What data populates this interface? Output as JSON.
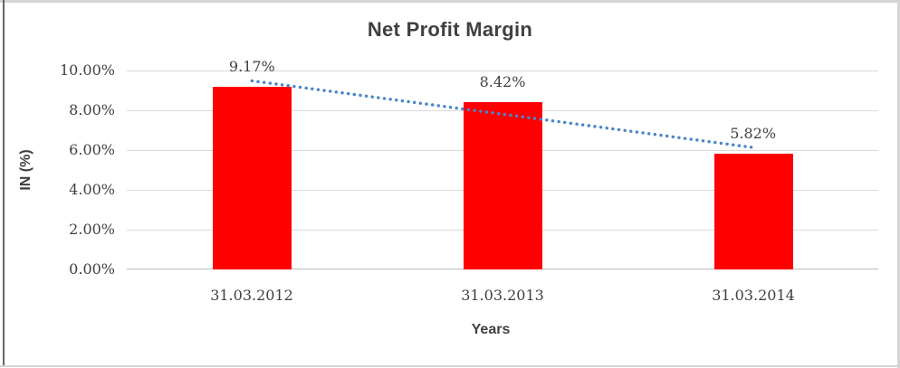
{
  "chart_data": {
    "type": "bar",
    "title": "Net Profit Margin",
    "xlabel": "Years",
    "ylabel": "IN (%)",
    "categories": [
      "31.03.2012",
      "31.03.2013",
      "31.03.2014"
    ],
    "values": [
      9.17,
      8.42,
      5.82
    ],
    "data_labels": [
      "9.17%",
      "8.42%",
      "5.82%"
    ],
    "yticks": [
      "10.00%",
      "8.00%",
      "6.00%",
      "4.00%",
      "2.00%",
      "0.00%"
    ],
    "ylim": [
      0,
      10
    ],
    "grid": "horizontal",
    "legend": "none",
    "colors": {
      "bar": "#FF0000",
      "gridline": "#d9d9d9",
      "axis_line": "#bdbdbd",
      "text": "#3f3f3f"
    },
    "trendline": {
      "type": "linear",
      "style": "dotted",
      "color": "#4A86C8",
      "start": 9.48,
      "end": 6.13
    }
  }
}
